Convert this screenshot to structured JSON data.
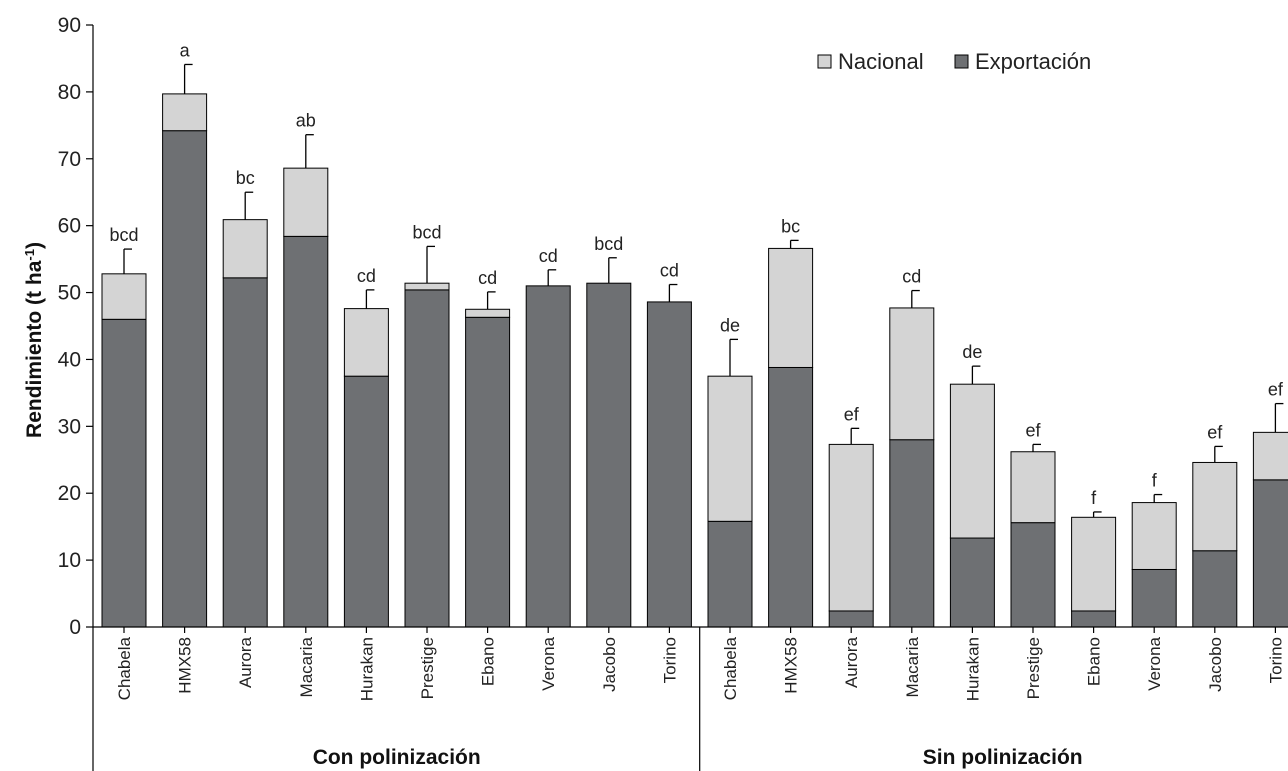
{
  "chart_data": {
    "type": "bar",
    "stacked": true,
    "title": "",
    "ylabel": "Rendimiento (t ha",
    "ylabel_superscript": "-1",
    "ylabel_suffix": ")",
    "ylim": [
      0,
      90
    ],
    "yticks": [
      "0",
      "10",
      "20",
      "30",
      "40",
      "50",
      "60",
      "70",
      "80",
      "90"
    ],
    "grid": false,
    "legend_position": "top-right",
    "groups": [
      {
        "label": "Con polinización",
        "categories": [
          "Chabela",
          "HMX58",
          "Aurora",
          "Macaria",
          "Hurakan",
          "Prestige",
          "Ebano",
          "Verona",
          "Jacobo",
          "Torino"
        ]
      },
      {
        "label": "Sin polinización",
        "categories": [
          "Chabela",
          "HMX58",
          "Aurora",
          "Macaria",
          "Hurakan",
          "Prestige",
          "Ebano",
          "Verona",
          "Jacobo",
          "Torino"
        ]
      }
    ],
    "categories": [
      "Chabela",
      "HMX58",
      "Aurora",
      "Macaria",
      "Hurakan",
      "Prestige",
      "Ebano",
      "Verona",
      "Jacobo",
      "Torino",
      "Chabela",
      "HMX58",
      "Aurora",
      "Macaria",
      "Hurakan",
      "Prestige",
      "Ebano",
      "Verona",
      "Jacobo",
      "Torino"
    ],
    "series": [
      {
        "name": "Exportación",
        "color": "#6e7073",
        "values": [
          46,
          74.2,
          52.2,
          58.4,
          37.5,
          50.4,
          46.3,
          51,
          51.4,
          48.6,
          15.8,
          38.8,
          2.4,
          28,
          13.3,
          15.6,
          2.4,
          8.6,
          11.4,
          22
        ]
      },
      {
        "name": "Nacional",
        "color": "#d4d4d4",
        "values": [
          6.8,
          5.5,
          8.7,
          10.2,
          10.1,
          1,
          1.2,
          0,
          0,
          0,
          21.7,
          17.8,
          24.9,
          19.7,
          23,
          10.6,
          14,
          10,
          13.2,
          7.1
        ]
      }
    ],
    "totals": [
      52.8,
      79.7,
      60.9,
      68.6,
      47.6,
      51.4,
      47.5,
      51,
      51.4,
      48.6,
      37.5,
      56.6,
      27.3,
      47.7,
      36.3,
      26.2,
      16.4,
      18.6,
      24.6,
      29.1
    ],
    "error_upper": [
      56.5,
      84.1,
      65,
      73.6,
      50.4,
      56.9,
      50.1,
      53.4,
      55.2,
      51.2,
      43,
      57.8,
      29.7,
      50.3,
      39,
      27.3,
      17.2,
      19.8,
      27,
      33.4
    ],
    "significance_letters": [
      "bcd",
      "a",
      "bc",
      "ab",
      "cd",
      "bcd",
      "cd",
      "cd",
      "bcd",
      "cd",
      "de",
      "bc",
      "ef",
      "cd",
      "de",
      "ef",
      "f",
      "f",
      "ef",
      "ef"
    ],
    "legend": [
      {
        "label": "Nacional",
        "color": "#d4d4d4"
      },
      {
        "label": "Exportación",
        "color": "#6e7073"
      }
    ]
  }
}
